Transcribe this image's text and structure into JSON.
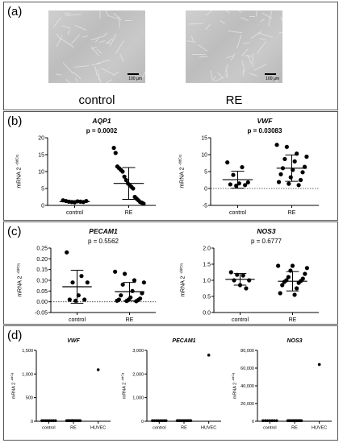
{
  "panel_a": {
    "label": "(a)",
    "images": [
      {
        "caption": "control",
        "scale_label": "100 µm"
      },
      {
        "caption": "RE",
        "scale_label": "100 µm"
      }
    ]
  },
  "panel_b": {
    "label": "(b)"
  },
  "panel_c": {
    "label": "(c)"
  },
  "panel_d": {
    "label": "(d)"
  },
  "chart_data": [
    {
      "type": "scatter",
      "title": "AQP1",
      "subtitle": "p = 0.0002",
      "ylabel": "mRNA 2",
      "ylabel_sup": "-ddCq",
      "ylim": [
        0,
        20
      ],
      "yticks": [
        0,
        5,
        10,
        15,
        20
      ],
      "ytick_labels": [
        "0",
        "5",
        "10",
        "15",
        "20"
      ],
      "categories": [
        "control",
        "RE"
      ],
      "points": [
        [
          1.5,
          1.3,
          1.1,
          1.0,
          0.9,
          1.2,
          1.1,
          1.0,
          1.3
        ],
        [
          17,
          15.5,
          11.5,
          11,
          10.5,
          10,
          8.5,
          7.5,
          6.5,
          6,
          5.5,
          5,
          2.5,
          2,
          1.5,
          1,
          0.8,
          0.5
        ]
      ],
      "mean": [
        1.1,
        6.5
      ],
      "sd": [
        0.3,
        4.7
      ],
      "baseline": null
    },
    {
      "type": "scatter",
      "title": "VWF",
      "subtitle": "p = 0.03083",
      "ylabel": "mRNA 2",
      "ylabel_sup": "-ddCq",
      "ylim": [
        -5,
        15
      ],
      "yticks": [
        -5,
        0,
        5,
        10,
        15
      ],
      "ytick_labels": [
        "-5",
        "0",
        "5",
        "10",
        "15"
      ],
      "categories": [
        "control",
        "RE"
      ],
      "points": [
        [
          7.7,
          6.3,
          4.0,
          1.8,
          1.5,
          1.2,
          1.0,
          0.8
        ],
        [
          12.9,
          12.3,
          10.3,
          9.4,
          8.7,
          8.0,
          6.4,
          6.0,
          5.5,
          4.8,
          4.2,
          3.3,
          2.5,
          1.9,
          1.4,
          1.0
        ]
      ],
      "mean": [
        2.6,
        6.0
      ],
      "sd": [
        2.5,
        3.9
      ],
      "baseline": 0
    },
    {
      "type": "scatter",
      "title": "PECAM1",
      "subtitle": "p = 0.5562",
      "ylabel": "mRNA 2",
      "ylabel_sup": "-ddCq",
      "ylim": [
        -0.05,
        0.25
      ],
      "yticks": [
        -0.05,
        0,
        0.05,
        0.1,
        0.15,
        0.2,
        0.25
      ],
      "ytick_labels": [
        "-0.05",
        "0.00",
        "0.05",
        "0.10",
        "0.15",
        "0.20",
        "0.25"
      ],
      "categories": [
        "control",
        "RE"
      ],
      "points": [
        [
          0.23,
          0.12,
          0.09,
          0.09,
          0.03,
          0.01,
          0.01,
          0.005
        ],
        [
          0.14,
          0.13,
          0.1,
          0.09,
          0.08,
          0.05,
          0.04,
          0.03,
          0.02,
          0.015,
          0.01,
          0.01,
          0.008,
          0.005,
          0.004,
          0.003
        ]
      ],
      "mean": [
        0.07,
        0.047
      ],
      "sd": [
        0.077,
        0.043
      ],
      "baseline": 0
    },
    {
      "type": "scatter",
      "title": "NOS3",
      "subtitle": "p = 0.6777",
      "ylabel": "mRNA 2",
      "ylabel_sup": "-ddCq",
      "ylim": [
        0,
        2
      ],
      "yticks": [
        0,
        0.5,
        1,
        1.5,
        2
      ],
      "ytick_labels": [
        "0.0",
        "0.5",
        "1.0",
        "1.5",
        "2.0"
      ],
      "categories": [
        "control",
        "RE"
      ],
      "points": [
        [
          1.25,
          1.17,
          1.15,
          1.0,
          1.0,
          0.85,
          0.75
        ],
        [
          1.45,
          1.45,
          1.38,
          1.3,
          1.2,
          1.1,
          1.05,
          1.0,
          0.98,
          0.95,
          0.92,
          0.85,
          0.75,
          0.6,
          0.55
        ]
      ],
      "mean": [
        1.03,
        0.97
      ],
      "sd": [
        0.18,
        0.3
      ],
      "baseline": null
    },
    {
      "type": "scatter",
      "title": "VWF",
      "ylabel": "mRNA 2",
      "ylabel_sup": "-ddCq",
      "ylim": [
        0,
        1500
      ],
      "yticks": [
        0,
        500,
        1000,
        1500
      ],
      "ytick_labels": [
        "0",
        "500",
        "1,000",
        "1,500"
      ],
      "categories": [
        "control",
        "RE",
        "HUVEC"
      ],
      "points": [
        [
          2,
          3,
          4,
          5,
          6,
          7,
          8,
          9
        ],
        [
          3,
          5,
          7,
          9,
          11,
          13,
          4,
          6,
          8,
          10,
          12,
          2
        ],
        [
          1090
        ]
      ],
      "baseline": null
    },
    {
      "type": "scatter",
      "title": "PECAM1",
      "ylabel": "mRNA 2",
      "ylabel_sup": "-ddCq",
      "ylim": [
        0,
        3000
      ],
      "yticks": [
        0,
        1000,
        2000,
        3000
      ],
      "ytick_labels": [
        "0",
        "1,000",
        "2,000",
        "3,000"
      ],
      "categories": [
        "control",
        "RE",
        "HUVEC"
      ],
      "points": [
        [
          1,
          2,
          3,
          4,
          5,
          6,
          7,
          8
        ],
        [
          1,
          2,
          3,
          4,
          5,
          6,
          7,
          8,
          9,
          10,
          11,
          12
        ],
        [
          2800
        ]
      ],
      "baseline": null
    },
    {
      "type": "scatter",
      "title": "NOS3",
      "ylabel": "mRNA 2",
      "ylabel_sup": "-ddCq",
      "ylim": [
        0,
        80000
      ],
      "yticks": [
        0,
        20000,
        40000,
        60000,
        80000
      ],
      "ytick_labels": [
        "0",
        "20,000",
        "40,000",
        "60,000",
        "80,000"
      ],
      "categories": [
        "control",
        "RE",
        "HUVEC"
      ],
      "points": [
        [
          1,
          2,
          3,
          4,
          5,
          6,
          7
        ],
        [
          1,
          2,
          3,
          4,
          5,
          6,
          7,
          8,
          9,
          10,
          11,
          12
        ],
        [
          64000
        ]
      ],
      "baseline": null
    }
  ]
}
